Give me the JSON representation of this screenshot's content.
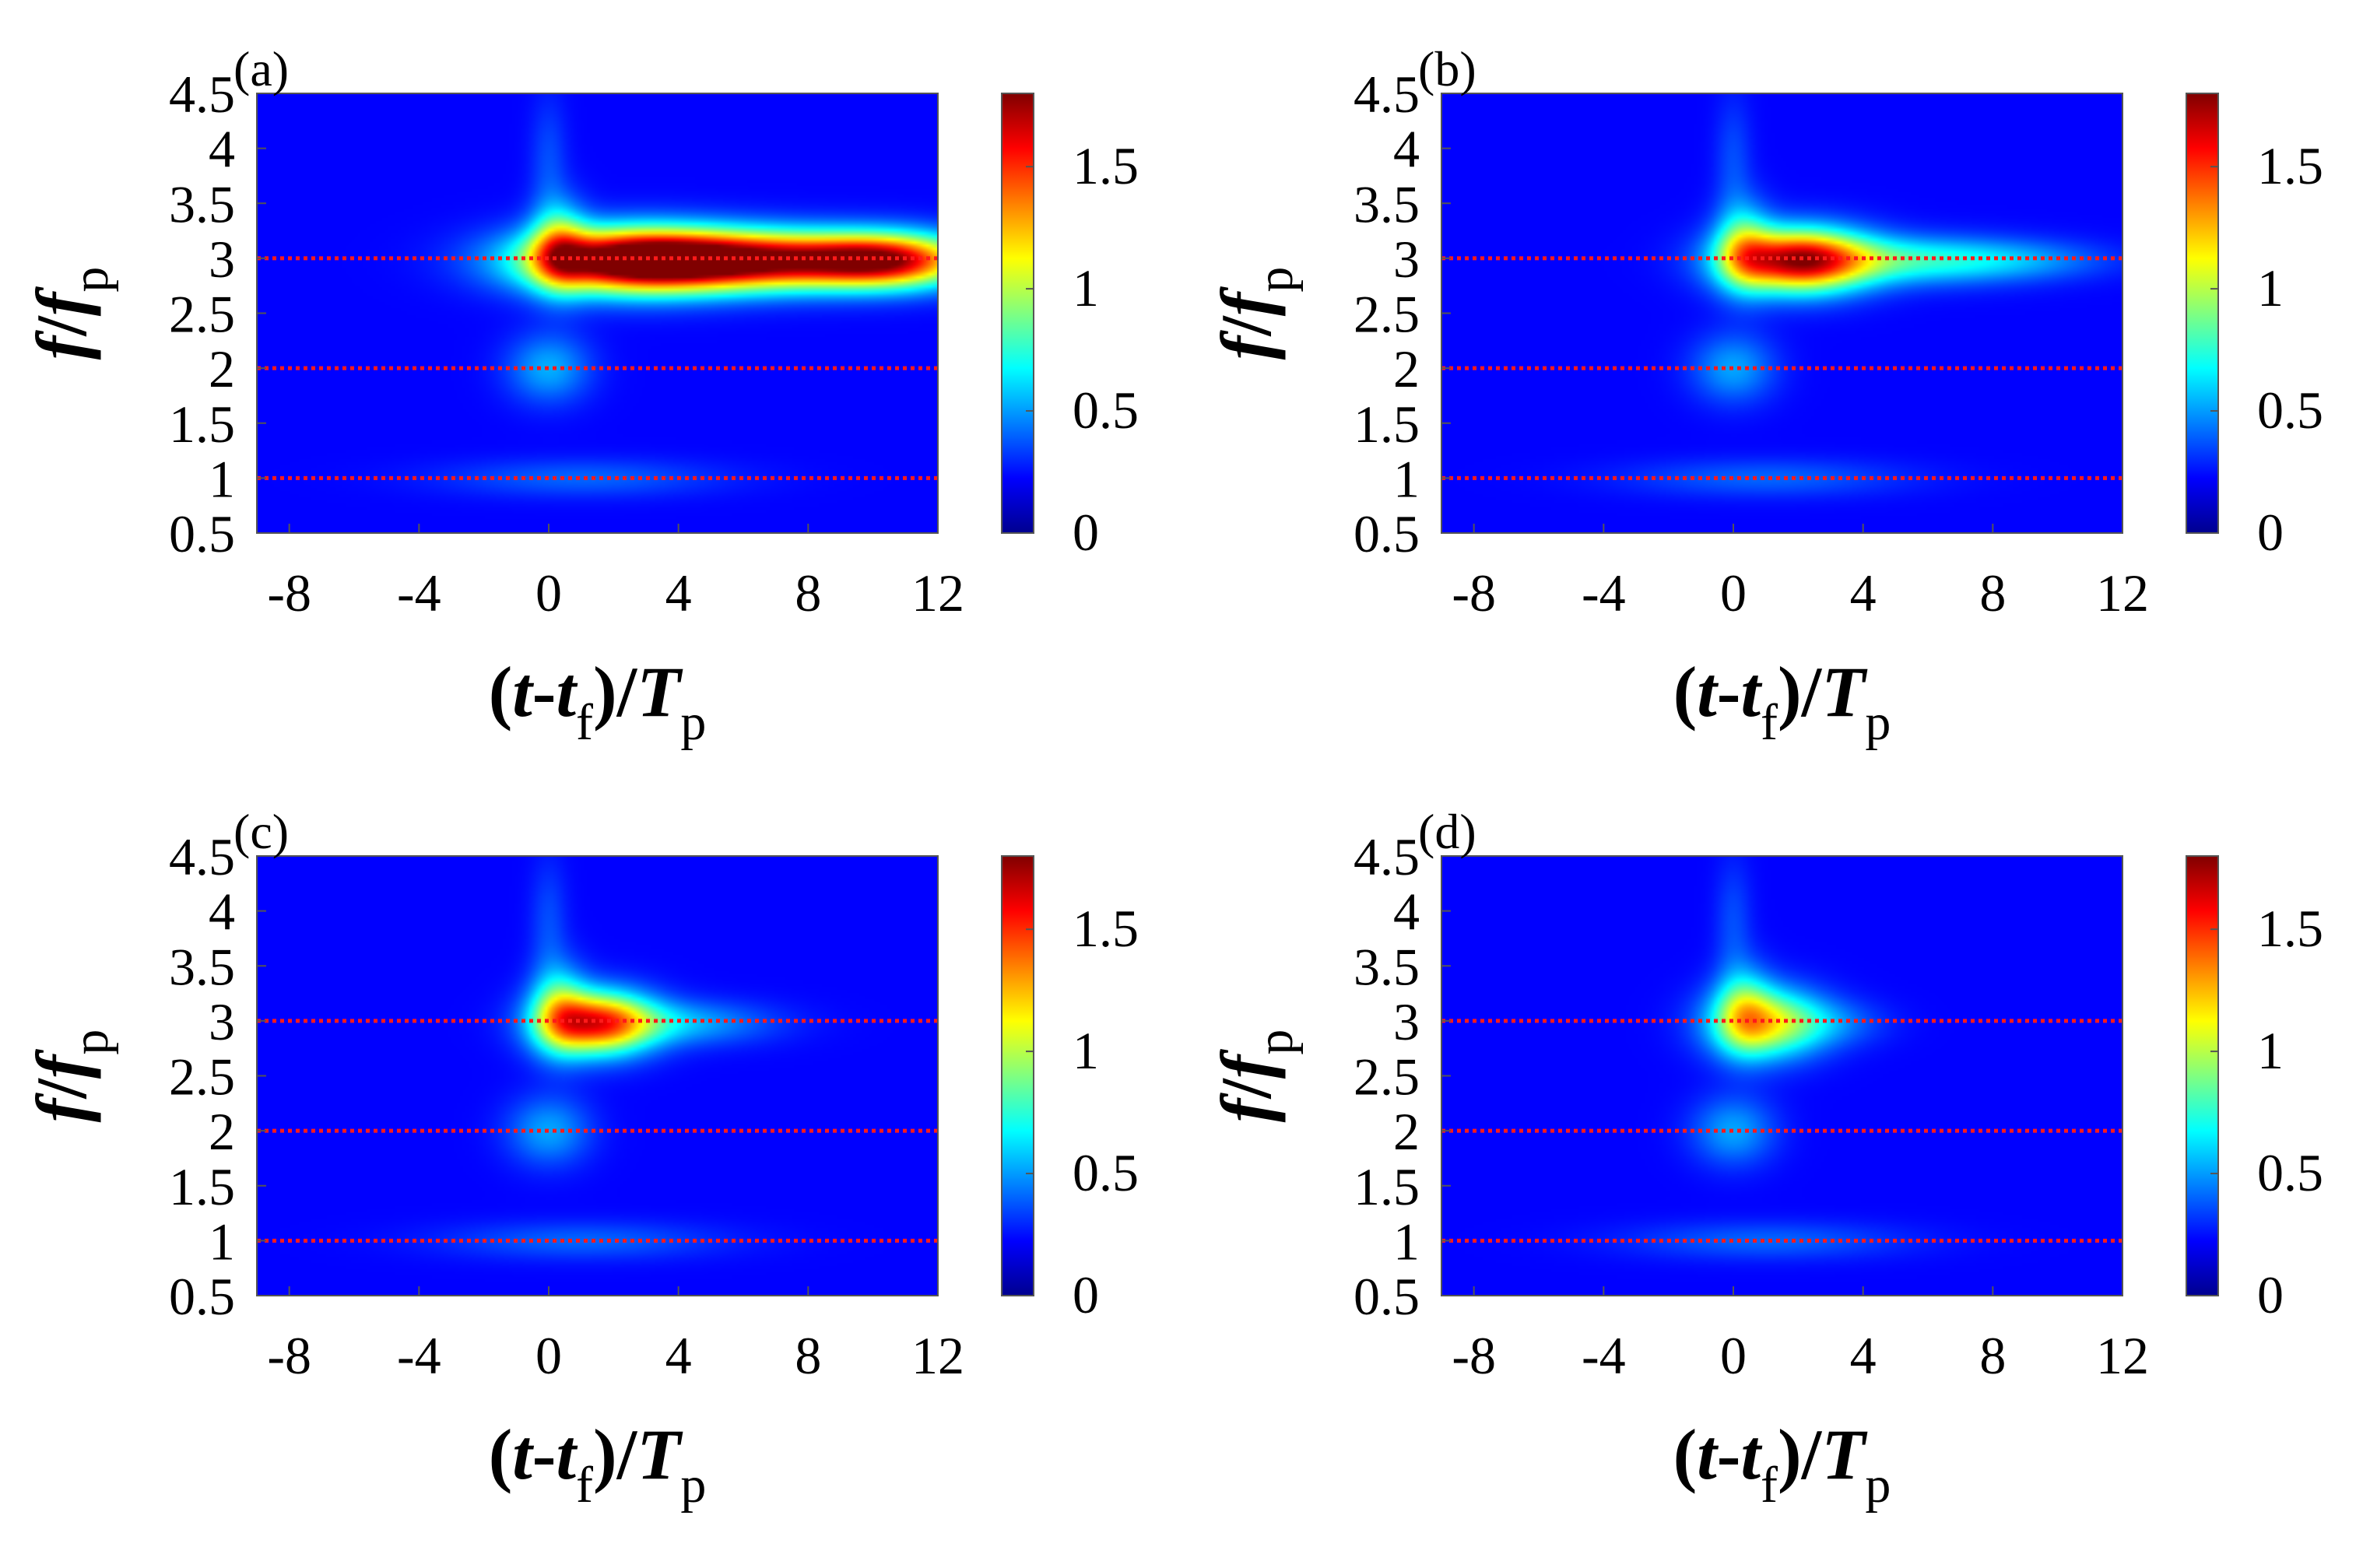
{
  "chart_data": [
    {
      "type": "heatmap",
      "panel_label": "(a)",
      "xlabel": {
        "base": "(",
        "var1": "t",
        "dash": "-",
        "var2": "t",
        "sub2": "f",
        "close": ")/",
        "var3": "T",
        "sub3": "p"
      },
      "ylabel": {
        "num": "f",
        "slash": "/",
        "den": "f",
        "sub": "p"
      },
      "xlim": [
        -9,
        12
      ],
      "ylim": [
        0.5,
        4.5
      ],
      "xticks": [
        "-8",
        "-4",
        "0",
        "4",
        "8",
        "12"
      ],
      "xtick_values": [
        -8,
        -4,
        0,
        4,
        8,
        12
      ],
      "yticks": [
        "0.5",
        "1",
        "1.5",
        "2",
        "2.5",
        "3",
        "3.5",
        "4",
        "4.5"
      ],
      "ytick_values": [
        0.5,
        1,
        1.5,
        2,
        2.5,
        3,
        3.5,
        4,
        4.5
      ],
      "reference_lines_y": [
        1,
        2,
        3
      ],
      "colorbar": {
        "range": [
          0,
          1.8
        ],
        "ticks": [
          "0",
          "0.5",
          "1",
          "1.5"
        ],
        "tick_values": [
          0,
          0.5,
          1,
          1.5
        ]
      },
      "blobs": [
        {
          "t": 2.5,
          "f": 2.98,
          "st": 2.3,
          "sf": 0.2,
          "a": 1.85
        },
        {
          "t": 6.5,
          "f": 2.98,
          "st": 2.7,
          "sf": 0.18,
          "a": 1.55
        },
        {
          "t": 10.5,
          "f": 2.98,
          "st": 1.8,
          "sf": 0.17,
          "a": 1.4
        },
        {
          "t": 0.3,
          "f": 3.1,
          "st": 0.6,
          "sf": 0.28,
          "a": 0.7
        },
        {
          "t": 0,
          "f": 2.0,
          "st": 0.9,
          "sf": 0.22,
          "a": 0.35
        },
        {
          "t": 1.0,
          "f": 1.0,
          "st": 3.0,
          "sf": 0.12,
          "a": 0.2
        },
        {
          "t": 0,
          "f": 3.9,
          "st": 0.4,
          "sf": 0.4,
          "a": 0.15
        }
      ]
    },
    {
      "type": "heatmap",
      "panel_label": "(b)",
      "xlabel": {
        "base": "(",
        "var1": "t",
        "dash": "-",
        "var2": "t",
        "sub2": "f",
        "close": ")/",
        "var3": "T",
        "sub3": "p"
      },
      "ylabel": {
        "num": "f",
        "slash": "/",
        "den": "f",
        "sub": "p"
      },
      "xlim": [
        -9,
        12
      ],
      "ylim": [
        0.5,
        4.5
      ],
      "xticks": [
        "-8",
        "-4",
        "0",
        "4",
        "8",
        "12"
      ],
      "xtick_values": [
        -8,
        -4,
        0,
        4,
        8,
        12
      ],
      "yticks": [
        "0.5",
        "1",
        "1.5",
        "2",
        "2.5",
        "3",
        "3.5",
        "4",
        "4.5"
      ],
      "ytick_values": [
        0.5,
        1,
        1.5,
        2,
        2.5,
        3,
        3.5,
        4,
        4.5
      ],
      "reference_lines_y": [
        1,
        2,
        3
      ],
      "colorbar": {
        "range": [
          0,
          1.8
        ],
        "ticks": [
          "0",
          "0.5",
          "1",
          "1.5"
        ],
        "tick_values": [
          0,
          0.5,
          1,
          1.5
        ]
      },
      "blobs": [
        {
          "t": 2.0,
          "f": 2.98,
          "st": 1.5,
          "sf": 0.2,
          "a": 1.6
        },
        {
          "t": 5.5,
          "f": 2.98,
          "st": 2.6,
          "sf": 0.15,
          "a": 0.55
        },
        {
          "t": 9.0,
          "f": 2.98,
          "st": 2.0,
          "sf": 0.12,
          "a": 0.18
        },
        {
          "t": 0.3,
          "f": 3.1,
          "st": 0.6,
          "sf": 0.28,
          "a": 0.6
        },
        {
          "t": 0,
          "f": 2.0,
          "st": 0.9,
          "sf": 0.22,
          "a": 0.33
        },
        {
          "t": 1.0,
          "f": 1.0,
          "st": 3.0,
          "sf": 0.12,
          "a": 0.2
        },
        {
          "t": 0,
          "f": 3.9,
          "st": 0.4,
          "sf": 0.4,
          "a": 0.15
        }
      ]
    },
    {
      "type": "heatmap",
      "panel_label": "(c)",
      "xlabel": {
        "base": "(",
        "var1": "t",
        "dash": "-",
        "var2": "t",
        "sub2": "f",
        "close": ")/",
        "var3": "T",
        "sub3": "p"
      },
      "ylabel": {
        "num": "f",
        "slash": "/",
        "den": "f",
        "sub": "p"
      },
      "xlim": [
        -9,
        12
      ],
      "ylim": [
        0.5,
        4.5
      ],
      "xticks": [
        "-8",
        "-4",
        "0",
        "4",
        "8",
        "12"
      ],
      "xtick_values": [
        -8,
        -4,
        0,
        4,
        8,
        12
      ],
      "yticks": [
        "0.5",
        "1",
        "1.5",
        "2",
        "2.5",
        "3",
        "3.5",
        "4",
        "4.5"
      ],
      "ytick_values": [
        0.5,
        1,
        1.5,
        2,
        2.5,
        3,
        3.5,
        4,
        4.5
      ],
      "reference_lines_y": [
        1,
        2,
        3
      ],
      "colorbar": {
        "range": [
          0,
          1.8
        ],
        "ticks": [
          "0",
          "0.5",
          "1",
          "1.5"
        ],
        "tick_values": [
          0,
          0.5,
          1,
          1.5
        ]
      },
      "blobs": [
        {
          "t": 1.5,
          "f": 2.98,
          "st": 1.2,
          "sf": 0.2,
          "a": 1.4
        },
        {
          "t": 4.0,
          "f": 2.98,
          "st": 2.0,
          "sf": 0.14,
          "a": 0.35
        },
        {
          "t": 0.3,
          "f": 3.1,
          "st": 0.6,
          "sf": 0.28,
          "a": 0.6
        },
        {
          "t": 0,
          "f": 2.0,
          "st": 0.9,
          "sf": 0.22,
          "a": 0.33
        },
        {
          "t": 1.0,
          "f": 1.0,
          "st": 3.0,
          "sf": 0.12,
          "a": 0.2
        },
        {
          "t": 0,
          "f": 3.9,
          "st": 0.4,
          "sf": 0.4,
          "a": 0.15
        }
      ]
    },
    {
      "type": "heatmap",
      "panel_label": "(d)",
      "xlabel": {
        "base": "(",
        "var1": "t",
        "dash": "-",
        "var2": "t",
        "sub2": "f",
        "close": ")/",
        "var3": "T",
        "sub3": "p"
      },
      "ylabel": {
        "num": "f",
        "slash": "/",
        "den": "f",
        "sub": "p"
      },
      "xlim": [
        -9,
        12
      ],
      "ylim": [
        0.5,
        4.5
      ],
      "xticks": [
        "-8",
        "-4",
        "0",
        "4",
        "8",
        "12"
      ],
      "xtick_values": [
        -8,
        -4,
        0,
        4,
        8,
        12
      ],
      "yticks": [
        "0.5",
        "1",
        "1.5",
        "2",
        "2.5",
        "3",
        "3.5",
        "4",
        "4.5"
      ],
      "ytick_values": [
        0.5,
        1,
        1.5,
        2,
        2.5,
        3,
        3.5,
        4,
        4.5
      ],
      "reference_lines_y": [
        1,
        2,
        3
      ],
      "colorbar": {
        "range": [
          0,
          1.8
        ],
        "ticks": [
          "0",
          "0.5",
          "1",
          "1.5"
        ],
        "tick_values": [
          0,
          0.5,
          1,
          1.5
        ]
      },
      "blobs": [
        {
          "t": 1.0,
          "f": 2.98,
          "st": 1.2,
          "sf": 0.22,
          "a": 0.95
        },
        {
          "t": 3.0,
          "f": 2.98,
          "st": 1.2,
          "sf": 0.15,
          "a": 0.2
        },
        {
          "t": 0.3,
          "f": 3.1,
          "st": 0.6,
          "sf": 0.28,
          "a": 0.5
        },
        {
          "t": 0,
          "f": 2.0,
          "st": 0.9,
          "sf": 0.22,
          "a": 0.33
        },
        {
          "t": 1.0,
          "f": 1.0,
          "st": 3.0,
          "sf": 0.12,
          "a": 0.2
        },
        {
          "t": 0,
          "f": 3.9,
          "st": 0.4,
          "sf": 0.4,
          "a": 0.15
        }
      ]
    }
  ]
}
